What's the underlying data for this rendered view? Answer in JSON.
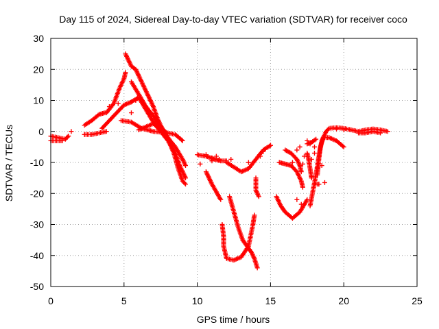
{
  "chart_data": {
    "type": "scatter",
    "title": "Day 115 of 2024, Sidereal Day-to-day VTEC variation (SDTVAR) for receiver coco",
    "xlabel": "GPS time / hours",
    "ylabel": "SDTVAR / TECUs",
    "xlim": [
      0,
      25
    ],
    "ylim": [
      -50,
      30
    ],
    "xticks": [
      0,
      5,
      10,
      15,
      20,
      25
    ],
    "yticks": [
      -50,
      -40,
      -30,
      -20,
      -10,
      0,
      10,
      20,
      30
    ],
    "grid": true,
    "marker": "+",
    "series_color": "#ff0000",
    "traces": [
      {
        "name": "t1",
        "points": [
          [
            0,
            -1.5
          ],
          [
            0.5,
            -2
          ],
          [
            1,
            -2.5
          ],
          [
            1.2,
            -1.5
          ]
        ]
      },
      {
        "name": "t2",
        "points": [
          [
            0,
            -3
          ],
          [
            0.5,
            -3
          ],
          [
            0.8,
            -3
          ]
        ]
      },
      {
        "name": "t3",
        "points": [
          [
            2.3,
            2
          ],
          [
            2.8,
            3.5
          ],
          [
            3.3,
            5.5
          ],
          [
            3.7,
            6
          ]
        ]
      },
      {
        "name": "t4",
        "points": [
          [
            2.3,
            -1
          ],
          [
            2.8,
            -1
          ],
          [
            3.3,
            -0.5
          ],
          [
            3.8,
            0
          ]
        ]
      },
      {
        "name": "t5",
        "points": [
          [
            3.8,
            6
          ],
          [
            4.3,
            9
          ],
          [
            4.7,
            14
          ],
          [
            5,
            17
          ],
          [
            5.1,
            19
          ]
        ]
      },
      {
        "name": "t6",
        "points": [
          [
            3.5,
            1
          ],
          [
            4,
            3.5
          ],
          [
            4.5,
            6
          ],
          [
            5,
            8.5
          ],
          [
            5.5,
            9.5
          ]
        ]
      },
      {
        "name": "t7",
        "points": [
          [
            5.1,
            25
          ],
          [
            5.5,
            21
          ],
          [
            5.8,
            20
          ],
          [
            6.2,
            16
          ],
          [
            6.6,
            12
          ],
          [
            7,
            8
          ],
          [
            7.3,
            4
          ],
          [
            7.7,
            0
          ],
          [
            8,
            -2
          ],
          [
            8.5,
            -5
          ],
          [
            9,
            -9
          ],
          [
            9.2,
            -11
          ]
        ]
      },
      {
        "name": "t8",
        "points": [
          [
            5.5,
            16
          ],
          [
            6,
            12
          ],
          [
            6.5,
            8
          ],
          [
            7,
            5
          ],
          [
            7.4,
            2
          ],
          [
            7.8,
            0
          ]
        ]
      },
      {
        "name": "t9",
        "points": [
          [
            5.5,
            9.5
          ],
          [
            6,
            11
          ],
          [
            6.5,
            7
          ],
          [
            7,
            3
          ],
          [
            7.5,
            0
          ],
          [
            8,
            -3
          ],
          [
            8.5,
            -7
          ],
          [
            8.8,
            -11
          ],
          [
            9.2,
            -15
          ]
        ]
      },
      {
        "name": "t10",
        "points": [
          [
            4.8,
            3.5
          ],
          [
            5.5,
            3
          ],
          [
            6.2,
            1
          ],
          [
            7,
            0
          ],
          [
            8,
            -0.5
          ],
          [
            8.5,
            -1
          ],
          [
            9,
            -3
          ]
        ]
      },
      {
        "name": "t11",
        "points": [
          [
            6,
            0.5
          ],
          [
            7,
            2.5
          ],
          [
            7.5,
            0.5
          ],
          [
            8,
            -2.5
          ],
          [
            8.4,
            -7
          ],
          [
            8.7,
            -12
          ],
          [
            9,
            -16
          ],
          [
            9.2,
            -17
          ]
        ]
      },
      {
        "name": "t12",
        "points": [
          [
            10,
            -7.5
          ],
          [
            10.6,
            -8
          ],
          [
            11.2,
            -9
          ],
          [
            11.6,
            -9.5
          ],
          [
            12,
            -9.5
          ]
        ]
      },
      {
        "name": "t13",
        "points": [
          [
            12,
            -10
          ],
          [
            12.5,
            -11.5
          ],
          [
            13,
            -13
          ],
          [
            13.5,
            -12
          ],
          [
            14,
            -9
          ],
          [
            14.5,
            -6
          ],
          [
            15,
            -4.5
          ]
        ]
      },
      {
        "name": "t14",
        "points": [
          [
            10.6,
            -13
          ],
          [
            11,
            -17
          ],
          [
            11.6,
            -22
          ]
        ]
      },
      {
        "name": "t15",
        "points": [
          [
            11.7,
            -30
          ],
          [
            11.8,
            -34
          ],
          [
            11.8,
            -37
          ],
          [
            12,
            -41
          ],
          [
            12.5,
            -41.5
          ],
          [
            13,
            -40.5
          ],
          [
            13.5,
            -37
          ],
          [
            13.8,
            -30
          ],
          [
            13.9,
            -27
          ]
        ]
      },
      {
        "name": "t16",
        "points": [
          [
            12.2,
            -21
          ],
          [
            12.5,
            -26
          ],
          [
            12.8,
            -31
          ],
          [
            13.1,
            -35
          ],
          [
            13.4,
            -37
          ],
          [
            13.7,
            -39
          ],
          [
            13.9,
            -41
          ],
          [
            14.1,
            -44
          ]
        ]
      },
      {
        "name": "t17",
        "points": [
          [
            14,
            -15
          ],
          [
            14,
            -19
          ],
          [
            14.2,
            -21
          ]
        ]
      },
      {
        "name": "t18",
        "points": [
          [
            15.6,
            -10
          ],
          [
            16,
            -10.5
          ],
          [
            16.4,
            -11
          ],
          [
            16.8,
            -13
          ],
          [
            17.1,
            -16
          ],
          [
            17.2,
            -18
          ]
        ]
      },
      {
        "name": "t19",
        "points": [
          [
            15.4,
            -21
          ],
          [
            15.7,
            -24
          ],
          [
            16,
            -26
          ],
          [
            16.5,
            -28
          ],
          [
            17,
            -26
          ],
          [
            17.5,
            -22
          ]
        ]
      },
      {
        "name": "t20",
        "points": [
          [
            16,
            -6
          ],
          [
            16.4,
            -7
          ],
          [
            16.8,
            -9
          ],
          [
            17,
            -11
          ],
          [
            17.1,
            -13
          ]
        ]
      },
      {
        "name": "t21",
        "points": [
          [
            17.5,
            -4
          ],
          [
            17.8,
            -3.5
          ],
          [
            18.1,
            -2.5
          ]
        ]
      },
      {
        "name": "t22",
        "points": [
          [
            17.5,
            -7
          ],
          [
            17.6,
            -9
          ],
          [
            17.7,
            -12
          ],
          [
            17.8,
            -15
          ]
        ]
      },
      {
        "name": "t23",
        "points": [
          [
            17.7,
            -24
          ],
          [
            17.9,
            -19
          ],
          [
            18.1,
            -14
          ],
          [
            18.3,
            -8
          ],
          [
            18.5,
            -3
          ],
          [
            18.8,
            0
          ],
          [
            19,
            1
          ],
          [
            19.5,
            1.2
          ],
          [
            20,
            1
          ],
          [
            20.5,
            0.5
          ]
        ]
      },
      {
        "name": "t24",
        "points": [
          [
            18.2,
            -14
          ],
          [
            18.3,
            -9
          ],
          [
            18.4,
            -5
          ],
          [
            18.6,
            -2
          ],
          [
            19,
            -2
          ],
          [
            19.5,
            -3
          ],
          [
            20,
            -5
          ]
        ]
      },
      {
        "name": "t25",
        "points": [
          [
            18.1,
            -17
          ],
          [
            18.3,
            -17
          ]
        ]
      },
      {
        "name": "t26",
        "points": [
          [
            20.5,
            0.5
          ],
          [
            21,
            0
          ],
          [
            21.5,
            0.5
          ],
          [
            22,
            0.8
          ],
          [
            22.5,
            0.5
          ],
          [
            23,
            0
          ]
        ]
      },
      {
        "name": "t27",
        "points": [
          [
            21,
            -0.5
          ],
          [
            21.5,
            -0.5
          ],
          [
            22,
            0
          ],
          [
            22.5,
            -0.5
          ]
        ]
      }
    ],
    "scatter": [
      [
        1.2,
        -1.5
      ],
      [
        1.4,
        0
      ],
      [
        2.3,
        -1
      ],
      [
        4,
        8
      ],
      [
        4.6,
        9
      ],
      [
        5.5,
        6
      ],
      [
        5.8,
        10
      ],
      [
        10.2,
        -10.5
      ],
      [
        10.6,
        -7.5
      ],
      [
        11,
        -8.5
      ],
      [
        11,
        -9.5
      ],
      [
        11.3,
        -8
      ],
      [
        11.5,
        -9
      ],
      [
        12.3,
        -9
      ],
      [
        13.5,
        -10
      ],
      [
        14.3,
        -8
      ],
      [
        14.5,
        -6.5
      ],
      [
        15,
        -4.5
      ],
      [
        16.5,
        -10
      ],
      [
        16.8,
        -6
      ],
      [
        17,
        -5
      ],
      [
        17.2,
        -10.5
      ],
      [
        17.3,
        -8
      ],
      [
        17.5,
        -3
      ],
      [
        17.7,
        -4
      ],
      [
        17.8,
        -9
      ],
      [
        18,
        -7
      ],
      [
        18,
        -5
      ],
      [
        18.2,
        -12
      ],
      [
        18.5,
        -11
      ],
      [
        18.3,
        -17
      ],
      [
        18.7,
        -16.5
      ],
      [
        17.1,
        -23.5
      ],
      [
        16.8,
        -22
      ],
      [
        19.5,
        0.8
      ],
      [
        20,
        0.5
      ]
    ]
  }
}
